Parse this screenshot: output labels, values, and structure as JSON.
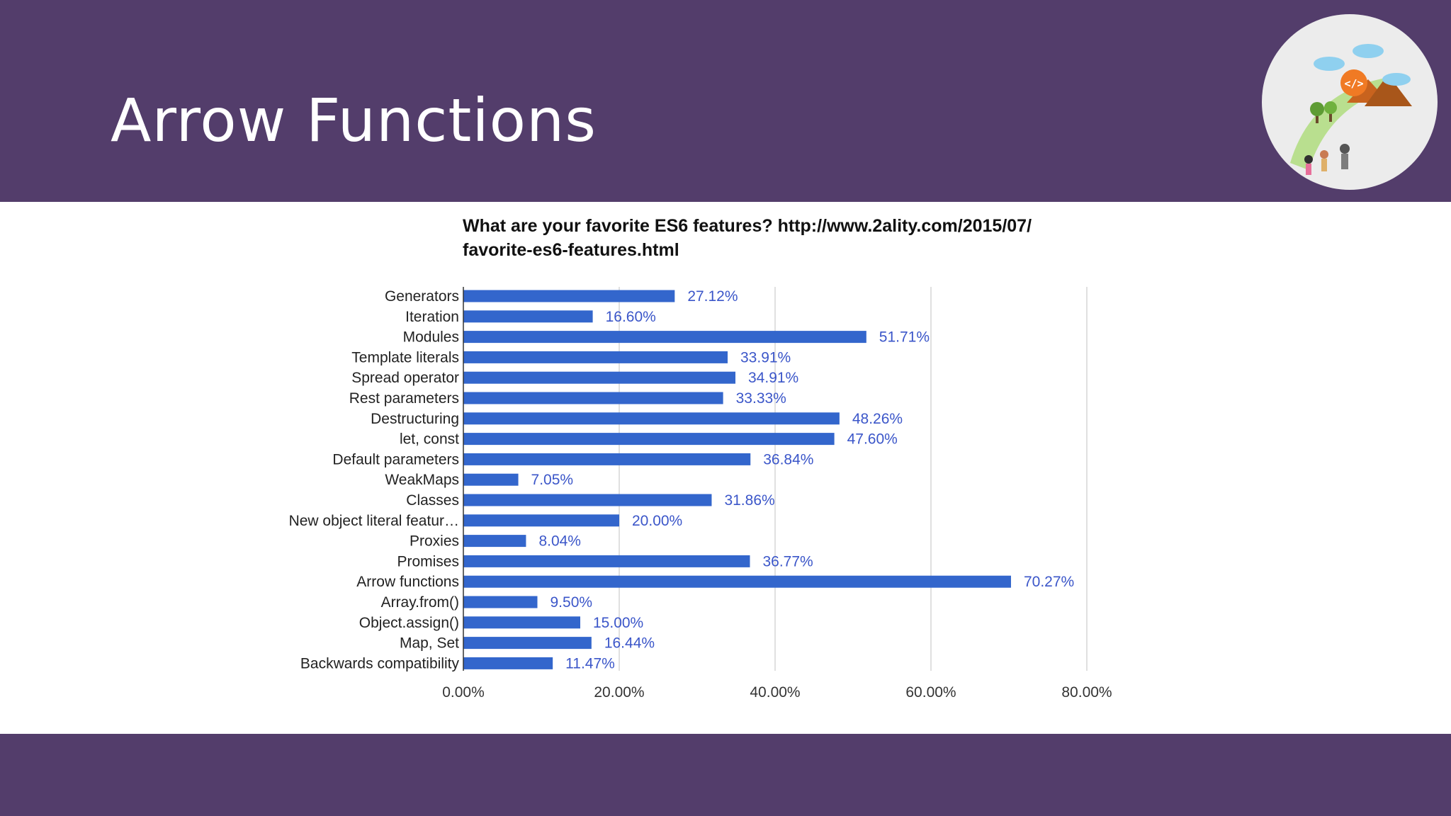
{
  "slide": {
    "title": "Arrow Functions",
    "band_color": "#533d6b",
    "logo_icon": "code-journey-logo"
  },
  "chart_data": {
    "type": "bar",
    "orientation": "horizontal",
    "title": "What are your favorite ES6 features? http://www.2ality.com/2015/07/favorite-es6-features.html",
    "title_lines": [
      "What are your favorite ES6 features? http://www.2ality.com/2015/07/",
      "favorite-es6-features.html"
    ],
    "categories": [
      "Generators",
      "Iteration",
      "Modules",
      "Template literals",
      "Spread operator",
      "Rest parameters",
      "Destructuring",
      "let, const",
      "Default parameters",
      "WeakMaps",
      "Classes",
      "New object literal featur…",
      "Proxies",
      "Promises",
      "Arrow functions",
      "Array.from()",
      "Object.assign()",
      "Map, Set",
      "Backwards compatibility"
    ],
    "values": [
      27.12,
      16.6,
      51.71,
      33.91,
      34.91,
      33.33,
      48.26,
      47.6,
      36.84,
      7.05,
      31.86,
      20.0,
      8.04,
      36.77,
      70.27,
      9.5,
      15.0,
      16.44,
      11.47
    ],
    "value_labels": [
      "27.12%",
      "16.60%",
      "51.71%",
      "33.91%",
      "34.91%",
      "33.33%",
      "48.26%",
      "47.60%",
      "36.84%",
      "7.05%",
      "31.86%",
      "20.00%",
      "8.04%",
      "36.77%",
      "70.27%",
      "9.50%",
      "15.00%",
      "16.44%",
      "11.47%"
    ],
    "xticks": [
      0,
      20,
      40,
      60,
      80
    ],
    "xtick_labels": [
      "0.00%",
      "20.00%",
      "40.00%",
      "60.00%",
      "80.00%"
    ],
    "xlim": [
      0,
      80
    ],
    "xlabel": "",
    "ylabel": "",
    "grid": true,
    "legend": "none",
    "bar_color": "#3366cc",
    "label_color": "#3b56c9"
  }
}
